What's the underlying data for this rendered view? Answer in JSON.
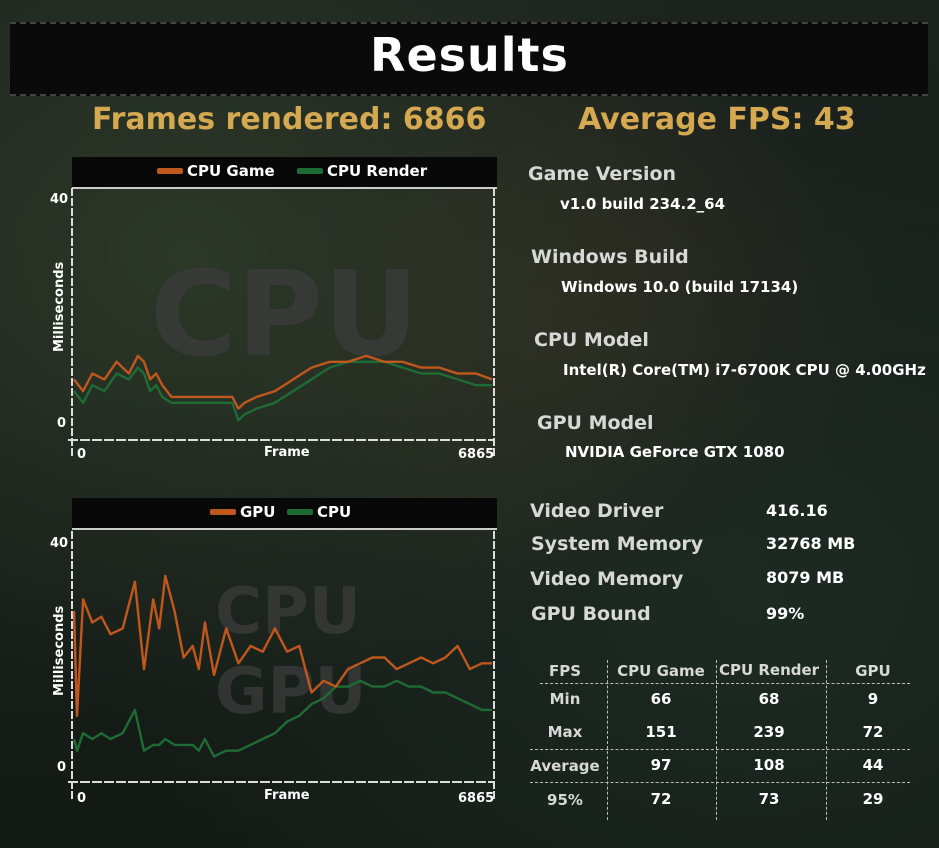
{
  "title": "Results",
  "frames_rendered": {
    "label": "Frames rendered: ",
    "value": "6866"
  },
  "average_fps": {
    "label": "Average FPS: ",
    "value": "43"
  },
  "chart_data": [
    {
      "type": "line",
      "watermark": "CPU",
      "xlabel": "Frame",
      "ylabel": "Milliseconds",
      "x_ticks": [
        "0",
        "6865"
      ],
      "y_ticks": [
        "0",
        "40"
      ],
      "xlim": [
        0,
        6865
      ],
      "ylim": [
        0,
        40
      ],
      "series": [
        {
          "name": "CPU Game",
          "color": "#c0571c",
          "x": [
            0,
            150,
            300,
            500,
            700,
            900,
            1050,
            1150,
            1250,
            1350,
            1450,
            1600,
            1800,
            2000,
            2300,
            2600,
            2700,
            2800,
            3000,
            3300,
            3600,
            3900,
            4200,
            4500,
            4800,
            5100,
            5400,
            5700,
            6000,
            6300,
            6600,
            6865
          ],
          "values": [
            9,
            7,
            10,
            9,
            12,
            10,
            13,
            12,
            9,
            10,
            8,
            6,
            6,
            6,
            6,
            6,
            4,
            5,
            6,
            7,
            9,
            11,
            12,
            12,
            13,
            12,
            12,
            11,
            11,
            10,
            10,
            9
          ]
        },
        {
          "name": "CPU Render",
          "color": "#1f6b35",
          "x": [
            0,
            150,
            300,
            500,
            700,
            900,
            1050,
            1150,
            1250,
            1350,
            1450,
            1600,
            1800,
            2000,
            2300,
            2600,
            2700,
            2800,
            3000,
            3300,
            3600,
            3900,
            4200,
            4500,
            4800,
            5100,
            5400,
            5700,
            6000,
            6300,
            6600,
            6865
          ],
          "values": [
            7,
            5,
            8,
            7,
            10,
            9,
            11,
            10,
            7,
            8,
            6,
            5,
            5,
            5,
            5,
            5,
            2,
            3,
            4,
            5,
            7,
            9,
            11,
            12,
            12,
            12,
            11,
            10,
            10,
            9,
            8,
            8
          ]
        }
      ]
    },
    {
      "type": "line",
      "watermark": "CPU GPU",
      "xlabel": "Frame",
      "ylabel": "Milliseconds",
      "x_ticks": [
        "0",
        "6865"
      ],
      "y_ticks": [
        "0",
        "40"
      ],
      "xlim": [
        0,
        6865
      ],
      "ylim": [
        0,
        40
      ],
      "series": [
        {
          "name": "GPU",
          "color": "#c0571c",
          "x": [
            0,
            50,
            150,
            300,
            450,
            600,
            800,
            1000,
            1150,
            1300,
            1400,
            1500,
            1650,
            1800,
            1950,
            2050,
            2150,
            2300,
            2500,
            2700,
            2900,
            3100,
            3300,
            3500,
            3700,
            3900,
            4100,
            4300,
            4500,
            4700,
            4900,
            5100,
            5300,
            5500,
            5700,
            5900,
            6100,
            6300,
            6500,
            6700,
            6865
          ],
          "values": [
            28,
            10,
            30,
            26,
            27,
            24,
            25,
            33,
            18,
            30,
            25,
            34,
            28,
            20,
            22,
            18,
            26,
            17,
            25,
            19,
            22,
            21,
            25,
            21,
            22,
            14,
            16,
            15,
            18,
            19,
            20,
            20,
            18,
            19,
            20,
            19,
            20,
            22,
            18,
            19,
            19
          ]
        },
        {
          "name": "CPU",
          "color": "#1f6b35",
          "x": [
            0,
            50,
            150,
            300,
            450,
            600,
            800,
            1000,
            1150,
            1300,
            1400,
            1500,
            1650,
            1800,
            1950,
            2050,
            2150,
            2300,
            2500,
            2700,
            2900,
            3100,
            3300,
            3500,
            3700,
            3900,
            4100,
            4300,
            4500,
            4700,
            4900,
            5100,
            5300,
            5500,
            5700,
            5900,
            6100,
            6300,
            6500,
            6700,
            6865
          ],
          "values": [
            6,
            4,
            7,
            6,
            7,
            6,
            7,
            11,
            4,
            5,
            5,
            6,
            5,
            5,
            5,
            4,
            6,
            3,
            4,
            4,
            5,
            6,
            7,
            9,
            10,
            12,
            13,
            15,
            15,
            16,
            15,
            15,
            16,
            15,
            15,
            14,
            14,
            13,
            12,
            11,
            11
          ]
        }
      ]
    }
  ],
  "info": {
    "game_version": {
      "label": "Game Version",
      "value": "v1.0 build 234.2_64"
    },
    "windows_build": {
      "label": "Windows Build",
      "value": "Windows 10.0 (build 17134)"
    },
    "cpu_model": {
      "label": "CPU Model",
      "value": "Intel(R) Core(TM) i7-6700K CPU @ 4.00GHz"
    },
    "gpu_model": {
      "label": "GPU Model",
      "value": "NVIDIA GeForce GTX 1080"
    }
  },
  "specs": [
    {
      "label": "Video Driver",
      "value": "416.16"
    },
    {
      "label": "System Memory",
      "value": "32768 MB"
    },
    {
      "label": "Video Memory",
      "value": "8079 MB"
    },
    {
      "label": "GPU Bound",
      "value": "99%"
    }
  ],
  "fps_table": {
    "headers": [
      "FPS",
      "CPU Game",
      "CPU Render",
      "GPU"
    ],
    "rows": [
      {
        "label": "Min",
        "values": [
          "66",
          "68",
          "9"
        ]
      },
      {
        "label": "Max",
        "values": [
          "151",
          "239",
          "72"
        ]
      },
      {
        "label": "Average",
        "values": [
          "97",
          "108",
          "44"
        ]
      },
      {
        "label": "95%",
        "values": [
          "72",
          "73",
          "29"
        ]
      }
    ]
  }
}
